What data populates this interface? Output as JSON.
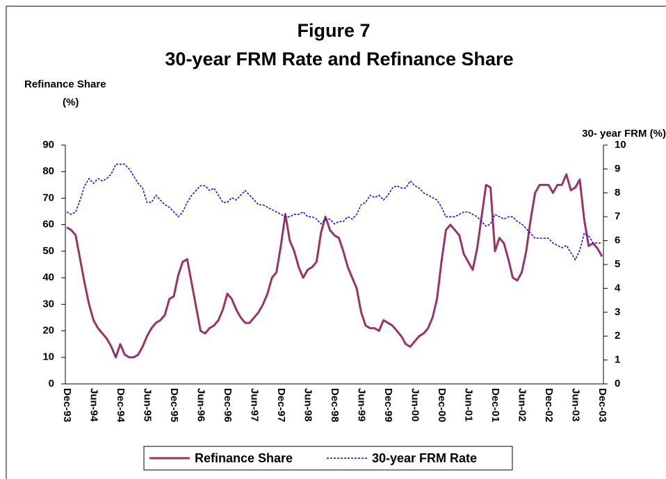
{
  "chart_data": {
    "type": "line",
    "title": "Figure 7",
    "subtitle": "30-year FRM Rate and Refinance Share",
    "ylabel": [
      "Refinance Share",
      "(%)"
    ],
    "y2label": "30- year FRM (%)",
    "categories": [
      "Dec-93",
      null,
      null,
      null,
      null,
      null,
      "Jun-94",
      null,
      null,
      null,
      null,
      null,
      "Dec-94",
      null,
      null,
      null,
      null,
      null,
      "Jun-95",
      null,
      null,
      null,
      null,
      null,
      "Dec-95",
      null,
      null,
      null,
      null,
      null,
      "Jun-96",
      null,
      null,
      null,
      null,
      null,
      "Dec-96",
      null,
      null,
      null,
      null,
      null,
      "Jun-97",
      null,
      null,
      null,
      null,
      null,
      "Dec-97",
      null,
      null,
      null,
      null,
      null,
      "Jun-98",
      null,
      null,
      null,
      null,
      null,
      "Dec-98",
      null,
      null,
      null,
      null,
      null,
      "Jun-99",
      null,
      null,
      null,
      null,
      null,
      "Dec-99",
      null,
      null,
      null,
      null,
      null,
      "Jun-00",
      null,
      null,
      null,
      null,
      null,
      "Dec-00",
      null,
      null,
      null,
      null,
      null,
      "Jun-01",
      null,
      null,
      null,
      null,
      null,
      "Dec-01",
      null,
      null,
      null,
      null,
      null,
      "Jun-02",
      null,
      null,
      null,
      null,
      null,
      "Dec-02",
      null,
      null,
      null,
      null,
      null,
      "Jun-03",
      null,
      null,
      null,
      null,
      null,
      "Dec-03"
    ],
    "series": [
      {
        "name": "Refinance Share",
        "color": "#993366",
        "axis": "y",
        "values": [
          59,
          58,
          56,
          47,
          38,
          30,
          24,
          21,
          19,
          17,
          14,
          10,
          15,
          11,
          10,
          10,
          11,
          14,
          18,
          21,
          23,
          24,
          26,
          32,
          33,
          41,
          46,
          47,
          38,
          29,
          20,
          19,
          21,
          22,
          24,
          28,
          34,
          32,
          28,
          25,
          23,
          23,
          25,
          27,
          30,
          34,
          40,
          42,
          52,
          64,
          54,
          50,
          44,
          40,
          43,
          44,
          46,
          57,
          63,
          58,
          56,
          55,
          50,
          44,
          40,
          36,
          27,
          22,
          21,
          21,
          20,
          24,
          23,
          22,
          20,
          18,
          15,
          14,
          16,
          18,
          19,
          21,
          25,
          32,
          46,
          58,
          60,
          58,
          56,
          49,
          46,
          43,
          51,
          63,
          75,
          74,
          50,
          55,
          53,
          47,
          40,
          39,
          42,
          50,
          62,
          72,
          75,
          75,
          75,
          72,
          75,
          75,
          79,
          73,
          74,
          77,
          62,
          52,
          53,
          51,
          48
        ]
      },
      {
        "name": "30-year FRM Rate",
        "color": "#0000ff",
        "axis": "y2",
        "values": [
          7.2,
          7.1,
          7.2,
          7.7,
          8.3,
          8.6,
          8.4,
          8.6,
          8.5,
          8.6,
          8.8,
          9.2,
          9.2,
          9.2,
          9.0,
          8.7,
          8.4,
          8.2,
          7.6,
          7.6,
          7.9,
          7.7,
          7.5,
          7.4,
          7.2,
          7.0,
          7.2,
          7.6,
          7.9,
          8.1,
          8.3,
          8.3,
          8.1,
          8.2,
          7.9,
          7.6,
          7.6,
          7.8,
          7.7,
          7.9,
          8.1,
          7.9,
          7.7,
          7.5,
          7.5,
          7.4,
          7.3,
          7.2,
          7.1,
          7.0,
          7.0,
          7.1,
          7.1,
          7.2,
          7.0,
          7.0,
          6.9,
          6.7,
          6.9,
          6.9,
          6.7,
          6.8,
          6.8,
          7.0,
          6.9,
          7.1,
          7.5,
          7.6,
          7.9,
          7.8,
          7.9,
          7.7,
          7.9,
          8.2,
          8.3,
          8.2,
          8.2,
          8.5,
          8.3,
          8.2,
          8.0,
          7.9,
          7.8,
          7.7,
          7.4,
          7.0,
          7.0,
          7.0,
          7.1,
          7.2,
          7.2,
          7.1,
          7.0,
          6.8,
          6.6,
          6.7,
          7.1,
          7.0,
          6.9,
          7.0,
          7.0,
          6.8,
          6.7,
          6.5,
          6.3,
          6.1,
          6.1,
          6.1,
          6.1,
          5.9,
          5.8,
          5.7,
          5.8,
          5.5,
          5.2,
          5.6,
          6.3,
          6.2,
          5.9,
          5.9,
          5.9
        ]
      }
    ],
    "ylim": [
      0,
      90
    ],
    "yticks": [
      0,
      10,
      20,
      30,
      40,
      50,
      60,
      70,
      80,
      90
    ],
    "y2lim": [
      0,
      10
    ],
    "y2ticks": [
      0,
      1,
      2,
      3,
      4,
      5,
      6,
      7,
      8,
      9,
      10
    ],
    "grid": false,
    "legend": "bottom"
  }
}
